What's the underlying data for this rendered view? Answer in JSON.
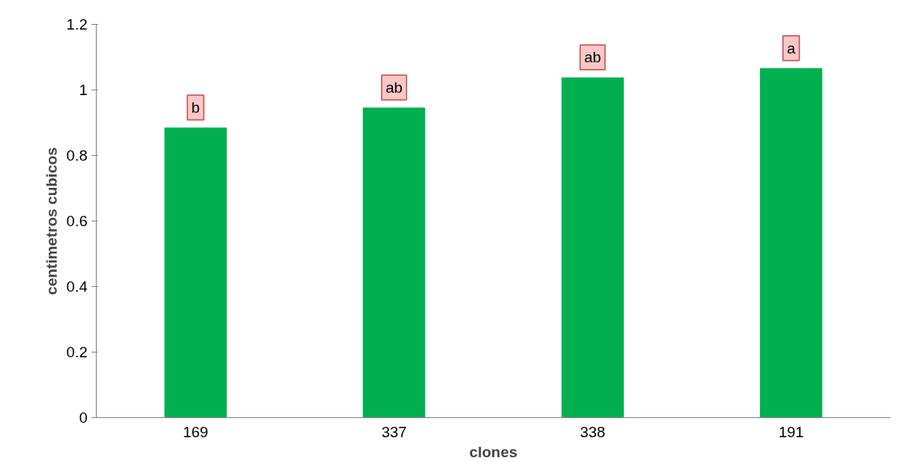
{
  "chart_data": {
    "type": "bar",
    "xlabel": "clones",
    "ylabel": "centimetros cubicos",
    "categories": [
      "169",
      "337",
      "338",
      "191"
    ],
    "values": [
      0.884,
      0.945,
      1.037,
      1.065
    ],
    "color": "#00b050",
    "ylim": [
      0,
      1.2
    ],
    "yticks": [
      0,
      0.2,
      0.4,
      0.6,
      0.8,
      1,
      1.2
    ],
    "grid": false,
    "annotations": [
      {
        "text": "b",
        "x": "169",
        "y": 0.884
      },
      {
        "text": "ab",
        "x": "337",
        "y": 0.945
      },
      {
        "text": "ab",
        "x": "338",
        "y": 1.037
      },
      {
        "text": "a",
        "x": "191",
        "y": 1.065
      }
    ]
  }
}
